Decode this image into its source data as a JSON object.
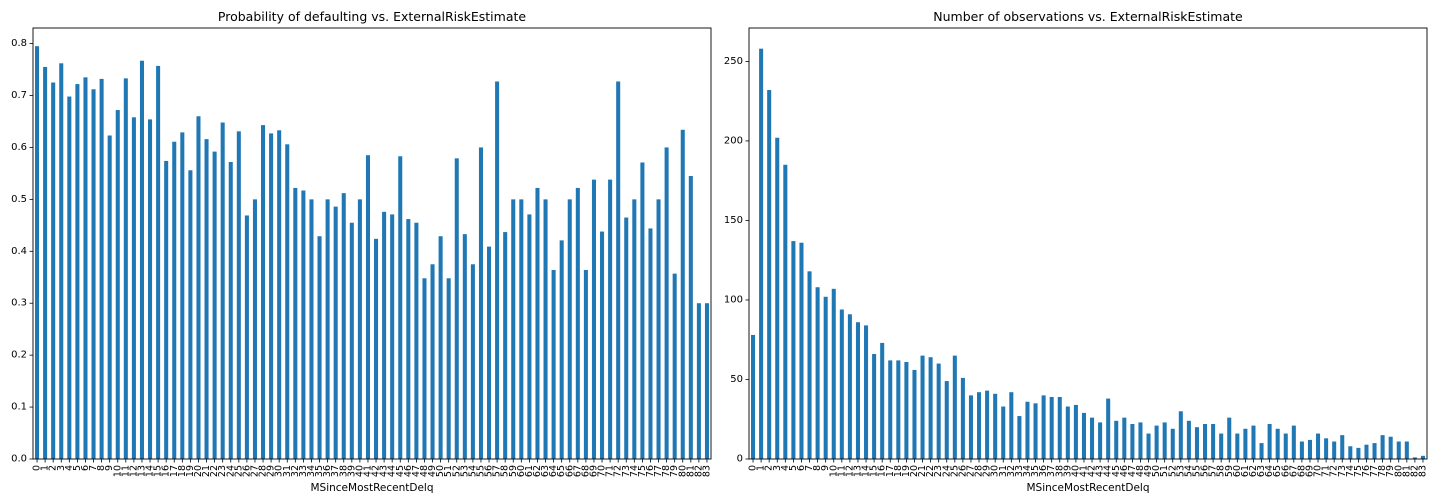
{
  "colors": {
    "bar": "#1f77b4",
    "axis": "#000000",
    "background": "#ffffff"
  },
  "chart_data": [
    {
      "type": "bar",
      "title": "Probability of defaulting vs. ExternalRiskEstimate",
      "xlabel": "MSinceMostRecentDelq",
      "ylabel": "",
      "ylim": [
        0,
        0.83
      ],
      "yticks": [
        "0.0",
        "0.1",
        "0.2",
        "0.3",
        "0.4",
        "0.5",
        "0.6",
        "0.7",
        "0.8"
      ],
      "grid": false,
      "categories": [
        "0",
        "1",
        "2",
        "3",
        "4",
        "5",
        "6",
        "7",
        "8",
        "9",
        "10",
        "11",
        "12",
        "13",
        "14",
        "15",
        "16",
        "17",
        "18",
        "19",
        "20",
        "21",
        "22",
        "23",
        "24",
        "25",
        "26",
        "27",
        "28",
        "29",
        "30",
        "31",
        "32",
        "33",
        "34",
        "35",
        "36",
        "37",
        "38",
        "39",
        "40",
        "41",
        "42",
        "43",
        "44",
        "45",
        "46",
        "47",
        "48",
        "49",
        "50",
        "51",
        "52",
        "53",
        "54",
        "55",
        "56",
        "57",
        "58",
        "59",
        "60",
        "61",
        "62",
        "63",
        "64",
        "65",
        "66",
        "67",
        "68",
        "69",
        "70",
        "71",
        "72",
        "73",
        "74",
        "75",
        "76",
        "77",
        "78",
        "79",
        "80",
        "81",
        "82",
        "83"
      ],
      "values": [
        0.795,
        0.755,
        0.725,
        0.762,
        0.698,
        0.722,
        0.735,
        0.712,
        0.732,
        0.623,
        0.672,
        0.733,
        0.658,
        0.767,
        0.654,
        0.757,
        0.574,
        0.611,
        0.629,
        0.556,
        0.66,
        0.616,
        0.592,
        0.648,
        0.572,
        0.631,
        0.469,
        0.5,
        0.643,
        0.627,
        0.633,
        0.606,
        0.522,
        0.517,
        0.5,
        0.429,
        0.5,
        0.486,
        0.512,
        0.455,
        0.5,
        0.585,
        0.424,
        0.476,
        0.471,
        0.583,
        0.462,
        0.455,
        0.348,
        0.375,
        0.429,
        0.348,
        0.579,
        0.433,
        0.375,
        0.6,
        0.409,
        0.727,
        0.437,
        0.5,
        0.5,
        0.471,
        0.522,
        0.5,
        0.364,
        0.421,
        0.5,
        0.522,
        0.364,
        0.538,
        0.438,
        0.538,
        0.727,
        0.465,
        0.5,
        0.571,
        0.444,
        0.5,
        0.6,
        0.357,
        0.634,
        0.545,
        0.3,
        0.3
      ]
    },
    {
      "type": "bar",
      "title": "Number of observations vs. ExternalRiskEstimate",
      "xlabel": "MSinceMostRecentDelq",
      "ylabel": "",
      "ylim": [
        0,
        271
      ],
      "yticks": [
        "0",
        "50",
        "100",
        "150",
        "200",
        "250"
      ],
      "grid": false,
      "categories": [
        "0",
        "1",
        "2",
        "3",
        "4",
        "5",
        "6",
        "7",
        "8",
        "9",
        "10",
        "11",
        "12",
        "13",
        "14",
        "15",
        "16",
        "17",
        "18",
        "19",
        "20",
        "21",
        "22",
        "23",
        "24",
        "25",
        "26",
        "27",
        "28",
        "29",
        "30",
        "31",
        "32",
        "33",
        "34",
        "35",
        "36",
        "37",
        "38",
        "39",
        "40",
        "41",
        "42",
        "43",
        "44",
        "45",
        "46",
        "47",
        "48",
        "49",
        "50",
        "51",
        "52",
        "53",
        "54",
        "55",
        "56",
        "57",
        "58",
        "59",
        "60",
        "61",
        "62",
        "63",
        "64",
        "65",
        "66",
        "67",
        "68",
        "69",
        "70",
        "71",
        "72",
        "73",
        "74",
        "75",
        "76",
        "77",
        "78",
        "79",
        "80",
        "81",
        "82",
        "83"
      ],
      "values": [
        78,
        258,
        232,
        202,
        185,
        137,
        136,
        118,
        108,
        102,
        107,
        94,
        91,
        86,
        84,
        66,
        73,
        62,
        62,
        61,
        56,
        65,
        64,
        60,
        49,
        65,
        51,
        40,
        42,
        43,
        41,
        33,
        42,
        27,
        36,
        35,
        40,
        39,
        39,
        33,
        34,
        29,
        26,
        23,
        38,
        24,
        26,
        22,
        23,
        16,
        21,
        23,
        19,
        30,
        24,
        20,
        22,
        22,
        16,
        26,
        16,
        19,
        21,
        10,
        22,
        19,
        16,
        21,
        11,
        12,
        16,
        13,
        11,
        15,
        8,
        7,
        9,
        10,
        15,
        14,
        11,
        11,
        1,
        2
      ]
    }
  ]
}
